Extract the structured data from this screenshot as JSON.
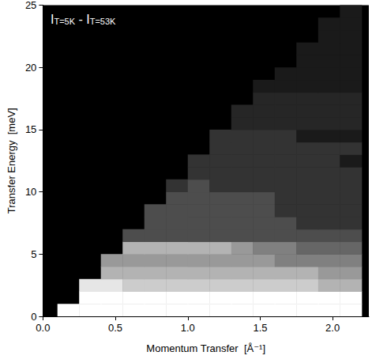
{
  "chart_data": {
    "type": "heatmap",
    "xlabel": "Momentum Transfer  [Å⁻¹]",
    "ylabel": "Transfer Energy  [meV]",
    "annotation": [
      {
        "text": "I",
        "sub": "T=5K"
      },
      {
        "text": "- I",
        "sub": "T=53K"
      }
    ],
    "xlim": [
      0,
      2.25
    ],
    "ylim": [
      0,
      25
    ],
    "xticks": [
      {
        "value": 0,
        "label": "0.0"
      },
      0.5,
      {
        "value": 1,
        "label": "1.0"
      },
      1.5,
      {
        "value": 2,
        "label": "2.0"
      }
    ],
    "yticks": [
      0,
      5,
      10,
      15,
      20,
      25
    ],
    "grid": false,
    "color": "#ffffff",
    "zlim": [
      0,
      10
    ],
    "x_bins": [
      0.1,
      0.25,
      0.4,
      0.55,
      0.7,
      0.85,
      1.0,
      1.15,
      1.3,
      1.45,
      1.6,
      1.75,
      1.9,
      2.05,
      2.2
    ],
    "y_bins": [
      0,
      1,
      2,
      3,
      4,
      5,
      6,
      7,
      8,
      9,
      10,
      11,
      12,
      13,
      14,
      15,
      16,
      17,
      18,
      19,
      20,
      21,
      22,
      23,
      24,
      25
    ],
    "z": [
      [
        10,
        10,
        10,
        10,
        10,
        10,
        10,
        10,
        10,
        10,
        10,
        10,
        10,
        10
      ],
      [
        null,
        10,
        10,
        10,
        10,
        10,
        10,
        10,
        10,
        10,
        10,
        10,
        10,
        10
      ],
      [
        null,
        9,
        9,
        8,
        8,
        8,
        8,
        8,
        8,
        8,
        8,
        8,
        7,
        7
      ],
      [
        null,
        null,
        7,
        7,
        7,
        7,
        7,
        7,
        7,
        7,
        7,
        7,
        6,
        6
      ],
      [
        null,
        null,
        6,
        6,
        6,
        6,
        6,
        6,
        6,
        6,
        5,
        5,
        5,
        5
      ],
      [
        null,
        null,
        null,
        7,
        7,
        7,
        7,
        7,
        6,
        5,
        5,
        4,
        4,
        4
      ],
      [
        null,
        null,
        null,
        3,
        3,
        3,
        3,
        3,
        3,
        3,
        3,
        3,
        3,
        3
      ],
      [
        null,
        null,
        null,
        null,
        3,
        3,
        3,
        3,
        3,
        3,
        3,
        2,
        2,
        2
      ],
      [
        null,
        null,
        null,
        null,
        3,
        3,
        3,
        3,
        3,
        3,
        2,
        2,
        2,
        2
      ],
      [
        null,
        null,
        null,
        null,
        null,
        3,
        3,
        3,
        3,
        3,
        2,
        2,
        2,
        2
      ],
      [
        null,
        null,
        null,
        null,
        null,
        2,
        3,
        2,
        2,
        2,
        2,
        2,
        2,
        2
      ],
      [
        null,
        null,
        null,
        null,
        null,
        null,
        2,
        2,
        2,
        2,
        2,
        2,
        2,
        2
      ],
      [
        null,
        null,
        null,
        null,
        null,
        null,
        2,
        2,
        2,
        2,
        2,
        2,
        2,
        1
      ],
      [
        null,
        null,
        null,
        null,
        null,
        null,
        null,
        2,
        2,
        2,
        2,
        2,
        2,
        2
      ],
      [
        null,
        null,
        null,
        null,
        null,
        null,
        null,
        2,
        2,
        2,
        2,
        1,
        1,
        1
      ],
      [
        null,
        null,
        null,
        null,
        null,
        null,
        null,
        null,
        1.5,
        1.5,
        1.5,
        1.5,
        1.5,
        1.5
      ],
      [
        null,
        null,
        null,
        null,
        null,
        null,
        null,
        null,
        1.5,
        1.5,
        1.5,
        1.5,
        1.5,
        1.5
      ],
      [
        null,
        null,
        null,
        null,
        null,
        null,
        null,
        null,
        null,
        1.5,
        1.5,
        1.5,
        1.5,
        1.5
      ],
      [
        null,
        null,
        null,
        null,
        null,
        null,
        null,
        null,
        null,
        1,
        1,
        1,
        1,
        1
      ],
      [
        null,
        null,
        null,
        null,
        null,
        null,
        null,
        null,
        null,
        null,
        1,
        1,
        1,
        1
      ],
      [
        null,
        null,
        null,
        null,
        null,
        null,
        null,
        null,
        null,
        null,
        null,
        1,
        1,
        1
      ],
      [
        null,
        null,
        null,
        null,
        null,
        null,
        null,
        null,
        null,
        null,
        null,
        1,
        1,
        1
      ],
      [
        null,
        null,
        null,
        null,
        null,
        null,
        null,
        null,
        null,
        null,
        null,
        null,
        1,
        1
      ],
      [
        null,
        null,
        null,
        null,
        null,
        null,
        null,
        null,
        null,
        null,
        null,
        null,
        1,
        1
      ],
      [
        null,
        null,
        null,
        null,
        null,
        null,
        null,
        null,
        null,
        null,
        null,
        null,
        null,
        1
      ]
    ]
  }
}
